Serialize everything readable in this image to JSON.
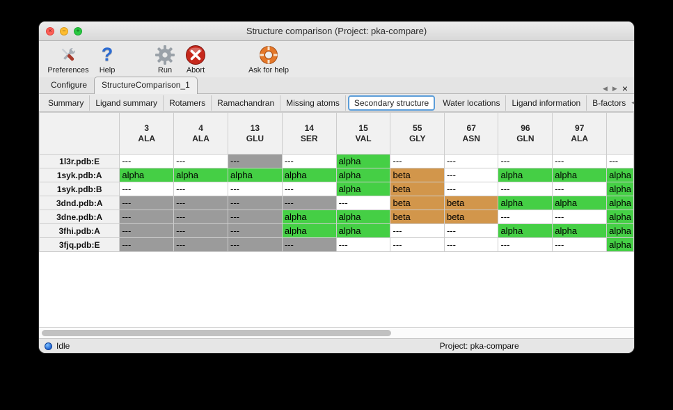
{
  "window": {
    "title": "Structure comparison (Project: pka-compare)"
  },
  "icons": {
    "window_close": "×",
    "window_minimize": "−",
    "window_zoom": "+",
    "help_glyph": "?",
    "arrow_left": "◀",
    "arrow_right": "▶",
    "tab_close": "×"
  },
  "toolbar": {
    "preferences": "Preferences",
    "help": "Help",
    "run": "Run",
    "abort": "Abort",
    "ask_for_help": "Ask for help"
  },
  "tabs": {
    "configure": "Configure",
    "structure_comparison": "StructureComparison_1"
  },
  "subtabs": {
    "items": [
      "Summary",
      "Ligand summary",
      "Rotamers",
      "Ramachandran",
      "Missing atoms",
      "Secondary structure",
      "Water locations",
      "Ligand information",
      "B-factors"
    ],
    "active": "Secondary structure"
  },
  "table": {
    "columns": [
      {
        "num": "3",
        "res": "ALA"
      },
      {
        "num": "4",
        "res": "ALA"
      },
      {
        "num": "13",
        "res": "GLU"
      },
      {
        "num": "14",
        "res": "SER"
      },
      {
        "num": "15",
        "res": "VAL"
      },
      {
        "num": "55",
        "res": "GLY"
      },
      {
        "num": "67",
        "res": "ASN"
      },
      {
        "num": "96",
        "res": "GLN"
      },
      {
        "num": "97",
        "res": "ALA"
      },
      {
        "num": "",
        "res": ""
      }
    ],
    "cell_types": {
      "w": {
        "text": "---",
        "bg": "#ffffff"
      },
      "g": {
        "text": "---",
        "bg": "#9b9b9b"
      },
      "a": {
        "text": "alpha",
        "bg": "#45cf45"
      },
      "b": {
        "text": "beta",
        "bg": "#d2964b"
      }
    },
    "rows": [
      {
        "label": "1l3r.pdb:E",
        "cells": [
          "w",
          "w",
          "g",
          "w",
          "a",
          "w",
          "w",
          "w",
          "w",
          "w"
        ]
      },
      {
        "label": "1syk.pdb:A",
        "cells": [
          "a",
          "a",
          "a",
          "a",
          "a",
          "b",
          "w",
          "a",
          "a",
          "a"
        ]
      },
      {
        "label": "1syk.pdb:B",
        "cells": [
          "w",
          "w",
          "w",
          "w",
          "a",
          "b",
          "w",
          "w",
          "w",
          "a"
        ]
      },
      {
        "label": "3dnd.pdb:A",
        "cells": [
          "g",
          "g",
          "g",
          "g",
          "w",
          "b",
          "b",
          "a",
          "a",
          "a"
        ]
      },
      {
        "label": "3dne.pdb:A",
        "cells": [
          "g",
          "g",
          "g",
          "a",
          "a",
          "b",
          "b",
          "w",
          "w",
          "a"
        ]
      },
      {
        "label": "3fhi.pdb:A",
        "cells": [
          "g",
          "g",
          "g",
          "a",
          "a",
          "w",
          "w",
          "a",
          "a",
          "a"
        ]
      },
      {
        "label": "3fjq.pdb:E",
        "cells": [
          "g",
          "g",
          "g",
          "g",
          "w",
          "w",
          "w",
          "w",
          "w",
          "a"
        ]
      }
    ]
  },
  "statusbar": {
    "status": "Idle",
    "project": "Project: pka-compare"
  }
}
